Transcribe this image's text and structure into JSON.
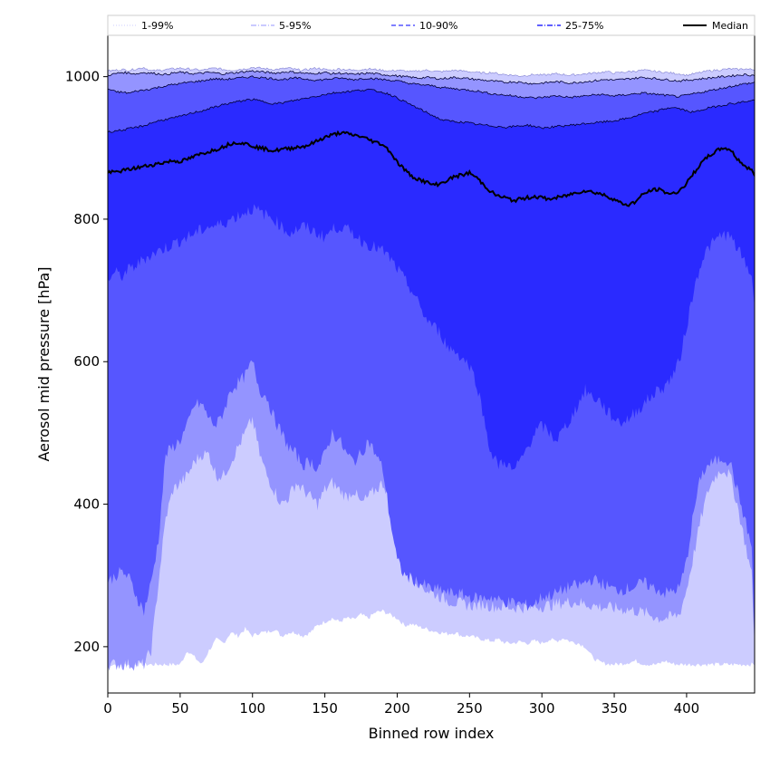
{
  "chart_data": {
    "type": "area",
    "title": "",
    "xlabel": "Binned row index",
    "ylabel": "Aerosol mid pressure [hPa]",
    "xlim": [
      0,
      447
    ],
    "ylim": [
      135,
      1058
    ],
    "x_ticks": [
      0,
      50,
      100,
      150,
      200,
      250,
      300,
      350,
      400
    ],
    "y_ticks": [
      200,
      400,
      600,
      800,
      1000
    ],
    "legend_position": "top, spanning full width",
    "colors": {
      "band_1_99": "#ccccff",
      "band_5_95": "#9494ff",
      "band_10_90": "#5656ff",
      "band_25_75": "#2a2aff",
      "median": "#000000",
      "outline": "#000080"
    },
    "x": [
      0,
      5,
      10,
      15,
      20,
      25,
      30,
      35,
      40,
      45,
      50,
      55,
      60,
      65,
      70,
      75,
      80,
      85,
      90,
      95,
      100,
      105,
      110,
      115,
      120,
      125,
      130,
      135,
      140,
      145,
      150,
      155,
      160,
      165,
      170,
      175,
      180,
      185,
      190,
      195,
      200,
      205,
      210,
      215,
      220,
      225,
      230,
      235,
      240,
      245,
      250,
      255,
      260,
      265,
      270,
      275,
      280,
      285,
      290,
      295,
      300,
      305,
      310,
      315,
      320,
      325,
      330,
      335,
      340,
      345,
      350,
      355,
      360,
      365,
      370,
      375,
      380,
      385,
      390,
      395,
      400,
      405,
      410,
      415,
      420,
      425,
      430,
      435,
      440,
      445,
      447
    ],
    "series": [
      {
        "name": "1-99%",
        "lower": [
          175,
          175,
          175,
          175,
          175,
          175,
          175,
          175,
          175,
          175,
          175,
          195,
          185,
          175,
          195,
          210,
          205,
          220,
          215,
          225,
          215,
          220,
          220,
          225,
          215,
          220,
          220,
          215,
          220,
          230,
          235,
          240,
          235,
          240,
          238,
          245,
          240,
          248,
          250,
          245,
          240,
          230,
          232,
          228,
          225,
          222,
          220,
          218,
          220,
          215,
          215,
          212,
          210,
          208,
          210,
          205,
          205,
          207,
          205,
          208,
          205,
          210,
          208,
          212,
          207,
          205,
          200,
          185,
          178,
          176,
          175,
          176,
          178,
          180,
          176,
          175,
          175,
          180,
          176,
          175,
          175,
          175,
          175,
          175,
          175,
          175,
          175,
          175,
          175,
          175,
          175
        ],
        "upper": [
          1008,
          1009,
          1010,
          1009,
          1011,
          1013,
          1008,
          1009,
          1010,
          1011,
          1012,
          1011,
          1010,
          1009,
          1011,
          1012,
          1010,
          1009,
          1010,
          1011,
          1013,
          1012,
          1011,
          1010,
          1011,
          1012,
          1010,
          1009,
          1011,
          1012,
          1010,
          1009,
          1011,
          1010,
          1009,
          1010,
          1011,
          1010,
          1009,
          1008,
          1009,
          1008,
          1007,
          1008,
          1009,
          1008,
          1007,
          1008,
          1009,
          1008,
          1007,
          1006,
          1005,
          1006,
          1004,
          1003,
          1002,
          1001,
          1002,
          1003,
          1002,
          1003,
          1004,
          1003,
          1002,
          1003,
          1004,
          1005,
          1006,
          1007,
          1005,
          1006,
          1007,
          1008,
          1009,
          1008,
          1007,
          1006,
          1005,
          1004,
          1002,
          1004,
          1006,
          1008,
          1009,
          1010,
          1011,
          1010,
          1011,
          1010,
          1010
        ],
        "color": "#ccccff",
        "style": "dotted"
      },
      {
        "name": "5-95%",
        "lower": [
          175,
          175,
          175,
          175,
          175,
          175,
          195,
          290,
          380,
          420,
          430,
          440,
          460,
          470,
          470,
          440,
          440,
          460,
          480,
          500,
          520,
          470,
          440,
          420,
          400,
          410,
          430,
          420,
          410,
          400,
          420,
          430,
          420,
          410,
          420,
          400,
          410,
          420,
          430,
          410,
          380,
          330,
          300,
          290,
          280,
          275,
          270,
          265,
          262,
          260,
          258,
          258,
          260,
          257,
          256,
          256,
          255,
          255,
          255,
          256,
          257,
          258,
          260,
          262,
          263,
          262,
          260,
          258,
          256,
          255,
          254,
          253,
          252,
          250,
          248,
          245,
          240,
          240,
          242,
          245,
          280,
          330,
          380,
          420,
          440,
          450,
          440,
          400,
          350,
          300,
          200
        ],
        "upper": [
          1002,
          1004,
          1006,
          1005,
          1004,
          1006,
          1005,
          1004,
          1003,
          1005,
          1006,
          1005,
          1004,
          1005,
          1006,
          1005,
          1004,
          1005,
          1006,
          1007,
          1008,
          1007,
          1006,
          1005,
          1006,
          1007,
          1006,
          1005,
          1004,
          1005,
          1006,
          1004,
          1005,
          1004,
          1003,
          1004,
          1005,
          1004,
          1003,
          1002,
          1001,
          1000,
          999,
          998,
          999,
          998,
          997,
          998,
          999,
          998,
          997,
          996,
          995,
          994,
          993,
          992,
          993,
          992,
          991,
          990,
          991,
          992,
          993,
          992,
          991,
          992,
          993,
          994,
          995,
          996,
          995,
          996,
          997,
          998,
          999,
          998,
          997,
          996,
          995,
          994,
          995,
          996,
          997,
          998,
          999,
          1000,
          1001,
          1002,
          1003,
          1002,
          1002
        ],
        "color": "#9494ff",
        "style": "dashdot"
      },
      {
        "name": "10-90%",
        "lower": [
          290,
          300,
          305,
          295,
          270,
          250,
          290,
          350,
          470,
          480,
          490,
          510,
          540,
          540,
          520,
          510,
          530,
          560,
          570,
          580,
          600,
          560,
          550,
          520,
          500,
          480,
          470,
          455,
          460,
          450,
          470,
          500,
          490,
          470,
          460,
          470,
          490,
          470,
          450,
          380,
          320,
          300,
          295,
          290,
          285,
          280,
          280,
          275,
          275,
          273,
          270,
          268,
          268,
          270,
          265,
          263,
          262,
          260,
          258,
          260,
          270,
          272,
          275,
          280,
          285,
          285,
          290,
          295,
          290,
          285,
          280,
          280,
          282,
          285,
          290,
          285,
          280,
          275,
          278,
          282,
          320,
          390,
          440,
          455,
          460,
          465,
          460,
          420,
          380,
          340,
          200
        ],
        "upper": [
          983,
          979,
          978,
          977,
          980,
          981,
          983,
          985,
          987,
          989,
          990,
          992,
          993,
          994,
          996,
          997,
          996,
          997,
          998,
          999,
          1000,
          999,
          998,
          997,
          996,
          997,
          998,
          997,
          996,
          995,
          996,
          997,
          998,
          997,
          996,
          997,
          998,
          997,
          996,
          995,
          994,
          992,
          990,
          989,
          988,
          987,
          985,
          984,
          983,
          982,
          981,
          980,
          978,
          976,
          975,
          974,
          973,
          972,
          971,
          970,
          971,
          972,
          973,
          972,
          971,
          972,
          973,
          974,
          975,
          974,
          973,
          974,
          975,
          976,
          977,
          976,
          975,
          974,
          973,
          972,
          974,
          976,
          978,
          980,
          982,
          984,
          986,
          988,
          990,
          991,
          992
        ],
        "color": "#5656ff",
        "style": "dashed"
      },
      {
        "name": "25-75%",
        "lower": [
          715,
          725,
          720,
          730,
          735,
          745,
          750,
          755,
          760,
          765,
          770,
          775,
          780,
          785,
          790,
          790,
          795,
          800,
          805,
          810,
          815,
          810,
          805,
          800,
          790,
          780,
          785,
          790,
          785,
          780,
          775,
          785,
          790,
          785,
          780,
          770,
          765,
          760,
          755,
          745,
          730,
          715,
          700,
          680,
          660,
          650,
          640,
          620,
          615,
          605,
          595,
          570,
          520,
          470,
          455,
          460,
          445,
          460,
          480,
          500,
          510,
          500,
          490,
          505,
          520,
          540,
          560,
          550,
          545,
          530,
          520,
          515,
          520,
          530,
          540,
          550,
          560,
          565,
          580,
          600,
          650,
          700,
          740,
          760,
          770,
          780,
          775,
          760,
          740,
          720,
          680
        ],
        "upper": [
          922,
          924,
          925,
          927,
          929,
          931,
          935,
          938,
          940,
          942,
          944,
          947,
          950,
          952,
          955,
          958,
          961,
          963,
          965,
          967,
          968,
          966,
          964,
          962,
          963,
          965,
          967,
          969,
          971,
          973,
          975,
          977,
          978,
          979,
          980,
          981,
          982,
          980,
          978,
          975,
          970,
          965,
          960,
          955,
          950,
          945,
          940,
          938,
          937,
          936,
          935,
          933,
          932,
          931,
          930,
          929,
          930,
          931,
          932,
          930,
          928,
          929,
          930,
          931,
          932,
          933,
          934,
          935,
          936,
          937,
          938,
          940,
          942,
          945,
          948,
          950,
          952,
          955,
          957,
          955,
          952,
          950,
          953,
          956,
          958,
          960,
          962,
          963,
          965,
          966,
          968
        ],
        "color": "#2a2aff",
        "style": "dashdot"
      }
    ],
    "median": {
      "name": "Median",
      "values": [
        865,
        866,
        868,
        870,
        872,
        874,
        876,
        878,
        880,
        882,
        881,
        884,
        888,
        892,
        895,
        898,
        902,
        906,
        908,
        906,
        903,
        900,
        898,
        896,
        898,
        899,
        901,
        902,
        905,
        910,
        915,
        918,
        921,
        920,
        918,
        916,
        912,
        908,
        905,
        895,
        880,
        870,
        860,
        856,
        852,
        848,
        850,
        855,
        860,
        862,
        865,
        858,
        848,
        838,
        832,
        830,
        826,
        828,
        830,
        832,
        830,
        828,
        830,
        832,
        835,
        838,
        840,
        838,
        836,
        832,
        828,
        822,
        820,
        825,
        835,
        840,
        842,
        838,
        835,
        840,
        850,
        865,
        878,
        888,
        895,
        900,
        898,
        885,
        875,
        868,
        863
      ],
      "color": "#000000"
    },
    "legend": [
      "1-99%",
      "5-95%",
      "10-90%",
      "25-75%",
      "Median"
    ]
  }
}
